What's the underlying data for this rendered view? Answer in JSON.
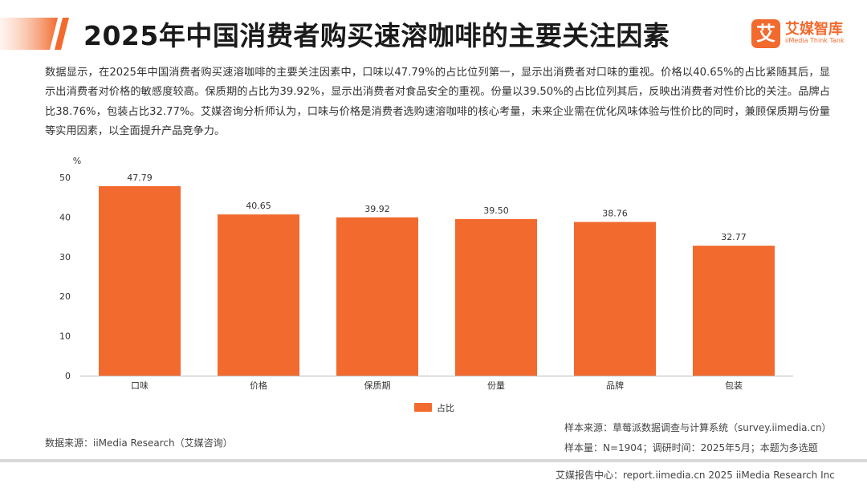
{
  "header": {
    "title": "2025年中国消费者购买速溶咖啡的主要关注因素",
    "logo_mark": "艾",
    "logo_cn": "艾媒智库",
    "logo_en": "iiMedia Think Tank"
  },
  "description": "数据显示，在2025年中国消费者购买速溶咖啡的主要关注因素中，口味以47.79%的占比位列第一，显示出消费者对口味的重视。价格以40.65%的占比紧随其后，显示出消费者对价格的敏感度较高。保质期的占比为39.92%，显示出消费者对食品安全的重视。份量以39.50%的占比位列其后，反映出消费者对性价比的关注。品牌占比38.76%，包装占比32.77%。艾媒咨询分析师认为，口味与价格是消费者选购速溶咖啡的核心考量，未来企业需在优化风味体验与性价比的同时，兼顾保质期与份量等实用因素，以全面提升产品竞争力。",
  "chart_data": {
    "type": "bar",
    "categories": [
      "口味",
      "价格",
      "保质期",
      "份量",
      "品牌",
      "包装"
    ],
    "series": [
      {
        "name": "占比",
        "values": [
          47.79,
          40.65,
          39.92,
          39.5,
          38.76,
          32.77
        ]
      }
    ],
    "value_labels": [
      "47.79",
      "40.65",
      "39.92",
      "39.50",
      "38.76",
      "32.77"
    ],
    "y_unit": "%",
    "ylim": [
      0,
      50
    ],
    "yticks": [
      0,
      10,
      20,
      30,
      40,
      50
    ],
    "grid": false,
    "legend_position": "bottom",
    "bar_color": "#f26a2e"
  },
  "sources": {
    "data_source": "数据来源：iiMedia Research（艾媒咨询）",
    "sample_source": "样本来源：草莓派数据调查与计算系统（survey.iimedia.cn）",
    "sample_info": "样本量：N=1904；调研时间：2025年5月；本题为多选题"
  },
  "footer": {
    "text": "艾媒报告中心：report.iimedia.cn  2025 iiMedia Research Inc"
  },
  "colors": {
    "accent": "#f26a2e",
    "title": "#1a1a1a"
  }
}
